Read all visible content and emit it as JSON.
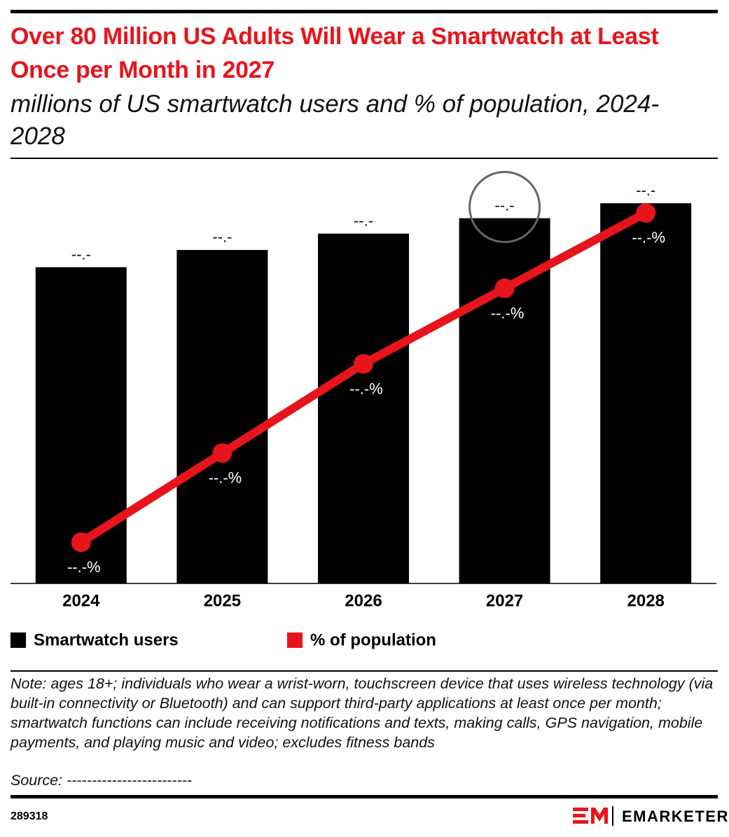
{
  "chart_data": {
    "type": "bar",
    "title": "Over 80 Million US Adults Will Wear a Smartwatch at Least Once per Month in 2027",
    "subtitle": "millions of US smartwatch users and % of population, 2024-2028",
    "categories": [
      "2024",
      "2025",
      "2026",
      "2027",
      "2028"
    ],
    "series": [
      {
        "name": "Smartwatch users",
        "type": "bar",
        "color": "#000000",
        "values": [
          69.7,
          73.5,
          77.1,
          80.5,
          83.8
        ],
        "value_labels": [
          "--.-",
          "--.-",
          "--.-",
          "--.-",
          "--.-"
        ]
      },
      {
        "name": "% of population",
        "type": "line",
        "axis": "y2",
        "color": "#e8141c",
        "values": [
          26.5,
          27.8,
          29.1,
          30.2,
          31.3
        ],
        "value_labels": [
          "--.-%",
          "--.-%",
          "--.-%",
          "--.-%",
          "--.-%"
        ]
      }
    ],
    "ylim": [
      0,
      90
    ],
    "y2lim": [
      25.9,
      31.85
    ],
    "legend": "bottom-left",
    "note": "Note: ages 18+; individuals who wear a wrist-worn, touchscreen device that uses wireless technology (via built-in connectivity or Bluetooth) and can support third-party applications at least once per month; smartwatch functions can include receiving notifications and texts, making calls, GPS navigation, mobile payments, and playing music and video; excludes fitness bands",
    "source": "Source: -------------------------",
    "chart_id": "289318",
    "brand": "EMARKETER"
  }
}
